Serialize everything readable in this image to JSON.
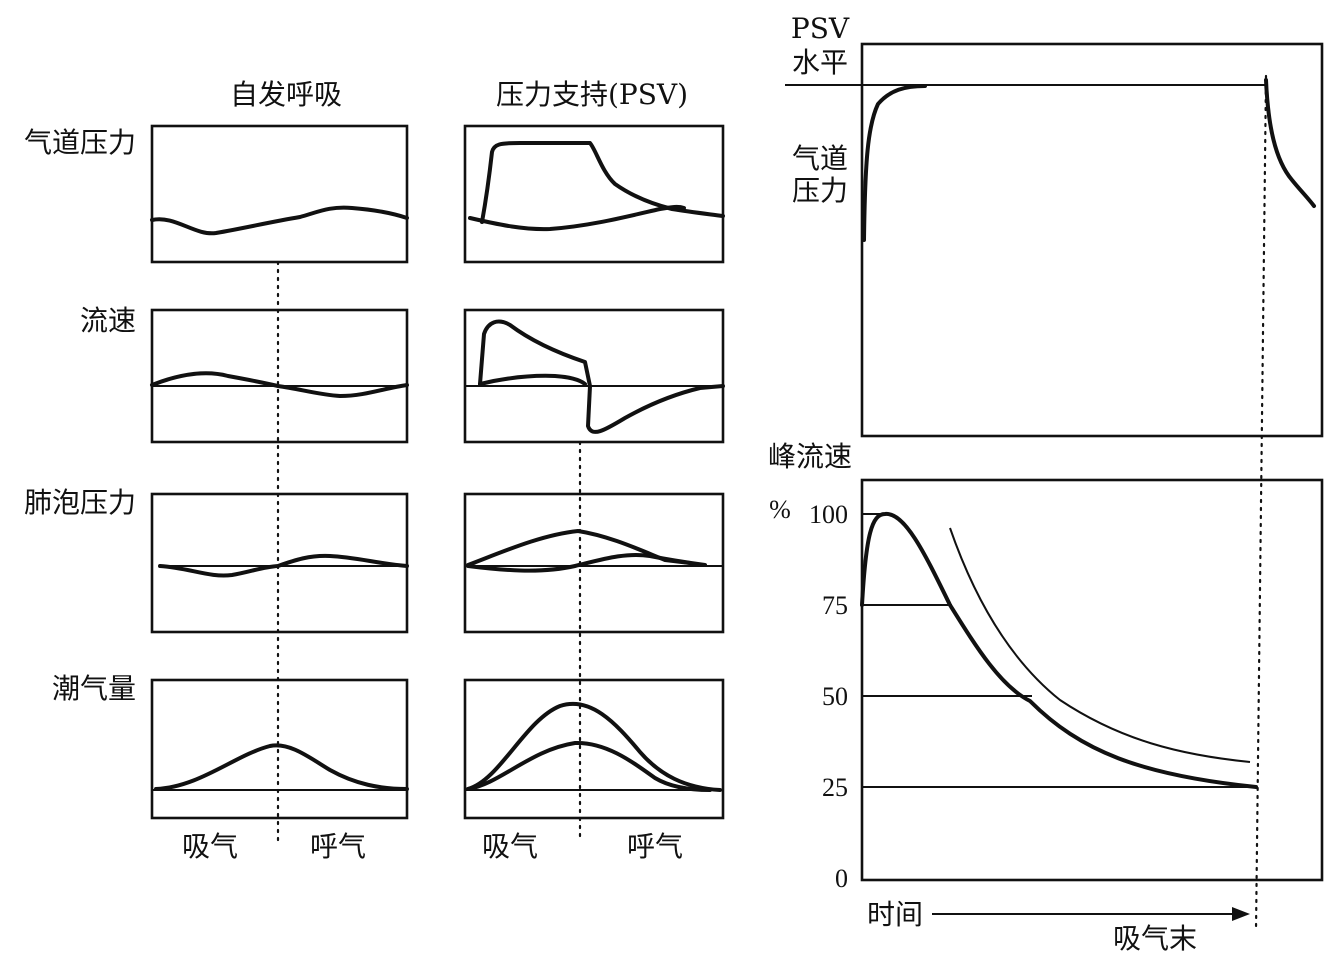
{
  "columns": {
    "spontaneous": "自发呼吸",
    "psv": "压力支持(PSV)"
  },
  "rows": {
    "airway_pressure": "气道压力",
    "flow": "流速",
    "alveolar_pressure": "肺泡压力",
    "tidal_volume": "潮气量"
  },
  "phases": {
    "inspiration": "吸气",
    "expiration": "呼气"
  },
  "right_panel": {
    "psv_level_line1": "PSV",
    "psv_level_line2": "水平",
    "airway_pressure_line1": "气道",
    "airway_pressure_line2": "压力",
    "peak_flow": "峰流速",
    "percent": "%",
    "time": "时间",
    "end_inspiration": "吸气末"
  },
  "chart_data": {
    "type": "line",
    "title": "",
    "xlabel": "时间",
    "ylabel": "峰流速 %",
    "yticks": [
      "100",
      "75",
      "50",
      "25",
      "0"
    ],
    "ylim": [
      0,
      100
    ],
    "levels": [
      100,
      75,
      50,
      25
    ],
    "end_marker": "吸气末"
  }
}
